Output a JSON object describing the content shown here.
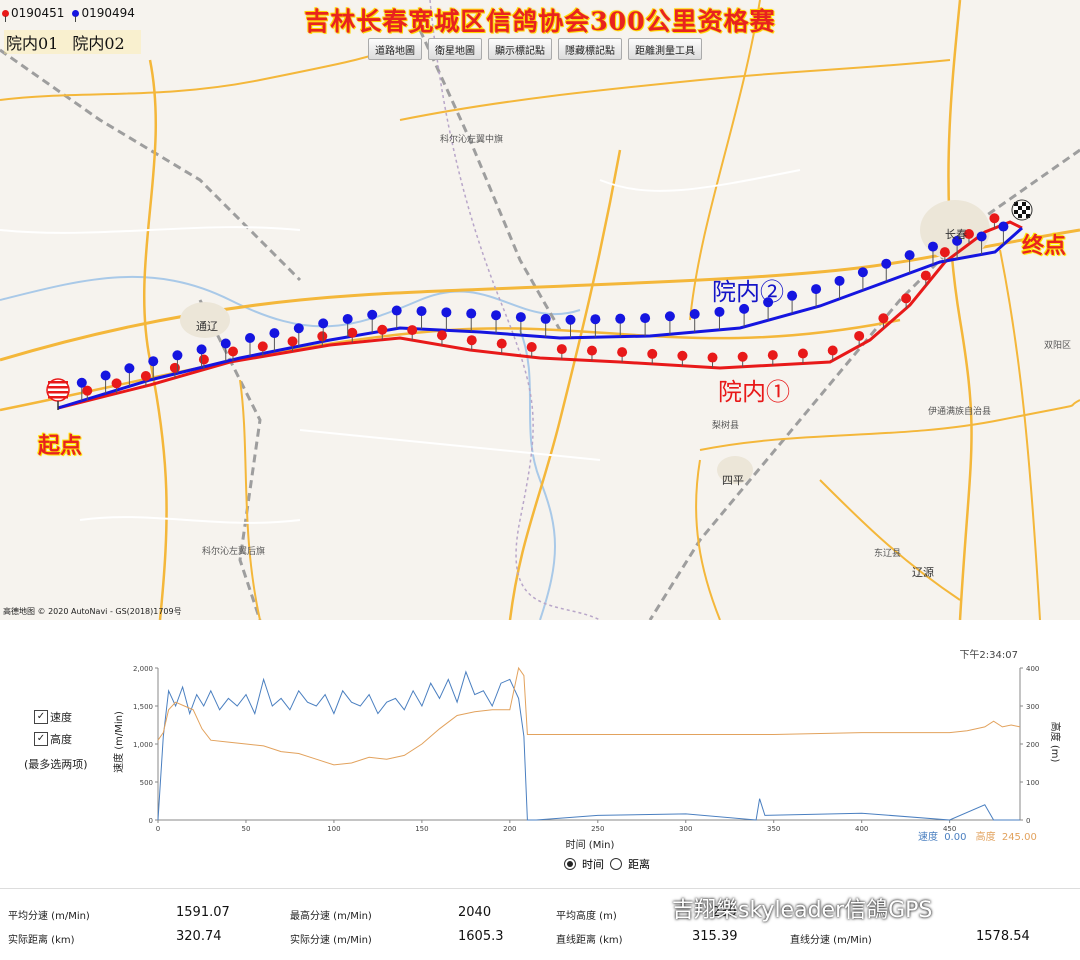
{
  "title": "吉林长春宽城区信鸽协会300公里资格赛",
  "pigeons": [
    {
      "id": "0190451",
      "color": "#e81919"
    },
    {
      "id": "0190494",
      "color": "#1515e0"
    }
  ],
  "inner_labels": [
    "院内01",
    "院内02"
  ],
  "toolbar": [
    "道路地圖",
    "衛星地圖",
    "顯示標記點",
    "隱藏標記點",
    "距離測量工具"
  ],
  "map_labels": {
    "start": "起点",
    "end": "终点",
    "route1": "院内①",
    "route2": "院内②",
    "towns": [
      "通辽",
      "长春",
      "四平",
      "辽源",
      "科尔沁左翼中旗",
      "科尔沁左翼后旗",
      "梨树县",
      "东辽县",
      "伊通满族自治县",
      "双阳区"
    ]
  },
  "copyright": "高德地图 © 2020 AutoNavi - GS(2018)1709号",
  "chart": {
    "timestamp": "下午2:34:07",
    "left_axis_label": "速度 (m/Min)",
    "right_axis_label": "高度 (m)",
    "x_axis_label": "时间 (Min)",
    "legend_speed_label": "速度",
    "legend_speed_value": "0.00",
    "legend_alt_label": "高度",
    "legend_alt_value": "245.00",
    "checkbox_speed": "速度",
    "checkbox_alt": "高度",
    "checkbox_note": "(最多选两项)",
    "radio_time": "时间",
    "radio_distance": "距离"
  },
  "chart_data": {
    "type": "line",
    "xlabel": "时间 (Min)",
    "x_ticks": [
      0,
      50,
      100,
      150,
      200,
      250,
      300,
      350,
      400,
      450
    ],
    "xlim": [
      0,
      490
    ],
    "y_left": {
      "label": "速度 (m/Min)",
      "ticks": [
        "0",
        "500",
        "1,000",
        "1,500",
        "2,000"
      ],
      "lim": [
        0,
        2000
      ]
    },
    "y_right": {
      "label": "高度 (m)",
      "ticks": [
        "0",
        "100",
        "200",
        "300",
        "400"
      ],
      "lim": [
        0,
        400
      ]
    },
    "series": [
      {
        "name": "速度",
        "axis": "left",
        "color": "#4a7fc0",
        "x": [
          0,
          3,
          6,
          10,
          14,
          18,
          22,
          26,
          30,
          35,
          40,
          45,
          50,
          55,
          60,
          65,
          70,
          75,
          80,
          85,
          90,
          95,
          100,
          105,
          110,
          115,
          120,
          125,
          130,
          135,
          140,
          145,
          150,
          155,
          160,
          165,
          170,
          175,
          180,
          185,
          190,
          195,
          200,
          203,
          205,
          208,
          210,
          215,
          250,
          300,
          340,
          342,
          345,
          400,
          450,
          470,
          475,
          490
        ],
        "y": [
          0,
          1100,
          1700,
          1500,
          1750,
          1400,
          1650,
          1500,
          1700,
          1450,
          1600,
          1500,
          1650,
          1400,
          1850,
          1500,
          1600,
          1450,
          1700,
          1550,
          1500,
          1650,
          1400,
          1700,
          1550,
          1500,
          1650,
          1400,
          1550,
          1600,
          1450,
          1700,
          1500,
          1800,
          1600,
          1850,
          1550,
          1950,
          1650,
          1700,
          1500,
          1800,
          1850,
          1700,
          1600,
          1100,
          0,
          0,
          60,
          80,
          0,
          280,
          60,
          90,
          0,
          200,
          0,
          0
        ]
      },
      {
        "name": "高度",
        "axis": "right",
        "color": "#e2a25d",
        "x": [
          0,
          3,
          6,
          10,
          15,
          20,
          25,
          30,
          40,
          50,
          60,
          70,
          80,
          90,
          100,
          110,
          120,
          130,
          140,
          150,
          160,
          170,
          180,
          190,
          200,
          205,
          208,
          210,
          250,
          300,
          350,
          400,
          450,
          460,
          470,
          475,
          480,
          485,
          490
        ],
        "y": [
          210,
          230,
          290,
          310,
          300,
          290,
          240,
          210,
          205,
          200,
          195,
          180,
          175,
          160,
          145,
          150,
          165,
          160,
          170,
          200,
          240,
          275,
          285,
          290,
          290,
          400,
          380,
          225,
          225,
          225,
          225,
          230,
          230,
          235,
          245,
          260,
          245,
          250,
          245
        ]
      }
    ]
  },
  "stats": {
    "avg_speed_label": "平均分速 (m/Min)",
    "avg_speed": "1591.07",
    "max_speed_label": "最高分速 (m/Min)",
    "max_speed": "2040",
    "avg_alt_label": "平均高度 (m)",
    "avg_alt": "239",
    "actual_distance_label": "实际距离 (km)",
    "actual_distance": "320.74",
    "actual_speed_label": "实际分速 (m/Min)",
    "actual_speed": "1605.3",
    "straight_distance_label": "直线距离 (km)",
    "straight_distance": "315.39",
    "straight_speed_label": "直线分速 (m/Min)",
    "straight_speed": "1578.54"
  },
  "watermark": "吉翔樂skyleader信鴿GPS"
}
